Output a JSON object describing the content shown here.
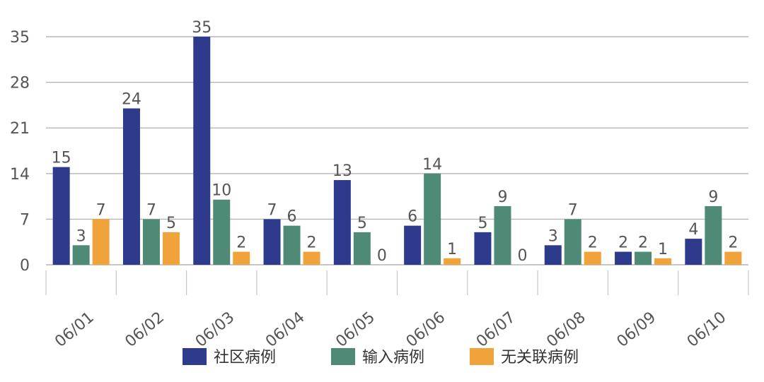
{
  "chart_data": {
    "type": "bar",
    "title": "",
    "xlabel": "",
    "ylabel": "",
    "categories": [
      "06/01",
      "06/02",
      "06/03",
      "06/04",
      "06/05",
      "06/06",
      "06/07",
      "06/08",
      "06/09",
      "06/10"
    ],
    "series": [
      {
        "name": "社区病例",
        "color": "#2E3A8C",
        "values": [
          15,
          24,
          35,
          7,
          13,
          6,
          5,
          3,
          2,
          4
        ]
      },
      {
        "name": "输入病例",
        "color": "#4E8A76",
        "values": [
          3,
          7,
          10,
          6,
          5,
          14,
          9,
          7,
          2,
          9
        ]
      },
      {
        "name": "无关联病例",
        "color": "#F0A33B",
        "values": [
          7,
          5,
          2,
          2,
          0,
          1,
          0,
          2,
          1,
          2
        ]
      }
    ],
    "ylim": [
      0,
      35
    ],
    "yticks": [
      0,
      7,
      14,
      21,
      28,
      35
    ],
    "grid": true,
    "legend_position": "bottom"
  }
}
